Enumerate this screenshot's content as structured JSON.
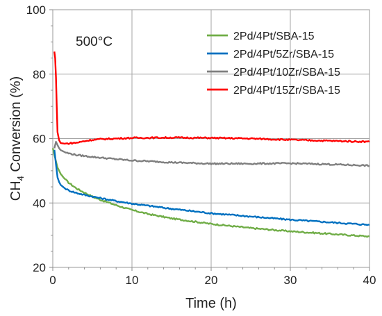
{
  "chart_data": {
    "type": "line",
    "xlabel": "Time (h)",
    "ylabel_main": "CH",
    "ylabel_sub": "4",
    "ylabel_rest": " Conversion (%)",
    "xlim": [
      0,
      40
    ],
    "ylim": [
      20,
      100
    ],
    "x_ticks": [
      "0",
      "10",
      "20",
      "30",
      "40"
    ],
    "y_ticks": [
      "20",
      "40",
      "60",
      "80",
      "100"
    ],
    "grid": true,
    "legend_position": "top-right",
    "annotation": "500°C",
    "series": [
      {
        "name": "2Pd/4Pt/SBA-15",
        "color": "#70ad47",
        "x": [
          0,
          0.3,
          0.6,
          1,
          1.5,
          2,
          3,
          4,
          5,
          6,
          8,
          10,
          12,
          15,
          20,
          25,
          30,
          35,
          40
        ],
        "y": [
          57,
          54,
          51,
          49,
          47.5,
          46.3,
          44.5,
          43.2,
          42,
          41,
          39.3,
          37.8,
          36.6,
          35.2,
          33.5,
          32.2,
          31.2,
          30.4,
          29.6
        ]
      },
      {
        "name": "2Pd/4Pt/5Zr/SBA-15",
        "color": "#0070c0",
        "x": [
          0.2,
          0.4,
          0.6,
          0.8,
          1,
          1.5,
          2,
          3,
          4,
          6,
          8,
          10,
          15,
          20,
          25,
          30,
          35,
          40
        ],
        "y": [
          56.5,
          52,
          48,
          46.5,
          45.6,
          44.6,
          43.9,
          43.1,
          42.5,
          41.5,
          40.6,
          39.8,
          38.2,
          36.8,
          35.8,
          34.8,
          34,
          33.2
        ]
      },
      {
        "name": "2Pd/4Pt/10Zr/SBA-15",
        "color": "#7f7f7f",
        "x": [
          0.2,
          0.4,
          0.6,
          0.8,
          1,
          1.5,
          2,
          3,
          5,
          8,
          10,
          15,
          20,
          25,
          30,
          35,
          40
        ],
        "y": [
          57,
          59,
          58,
          57,
          56.4,
          55.8,
          55.4,
          54.9,
          54.3,
          53.6,
          53.2,
          52.6,
          52.2,
          52.2,
          52.3,
          52.0,
          51.6
        ]
      },
      {
        "name": "2Pd/4Pt/15Zr/SBA-15",
        "color": "#ff0000",
        "x": [
          0.2,
          0.3,
          0.4,
          0.5,
          0.6,
          0.8,
          1,
          1.5,
          2,
          3,
          4,
          5,
          6,
          8,
          10,
          15,
          20,
          25,
          30,
          35,
          40
        ],
        "y": [
          87,
          85,
          79,
          70,
          62,
          59.5,
          58.6,
          58.4,
          58.5,
          58.7,
          59.2,
          59.6,
          59.8,
          60,
          60.2,
          60.3,
          60.2,
          60.0,
          59.6,
          59.3,
          59.0
        ]
      }
    ]
  }
}
